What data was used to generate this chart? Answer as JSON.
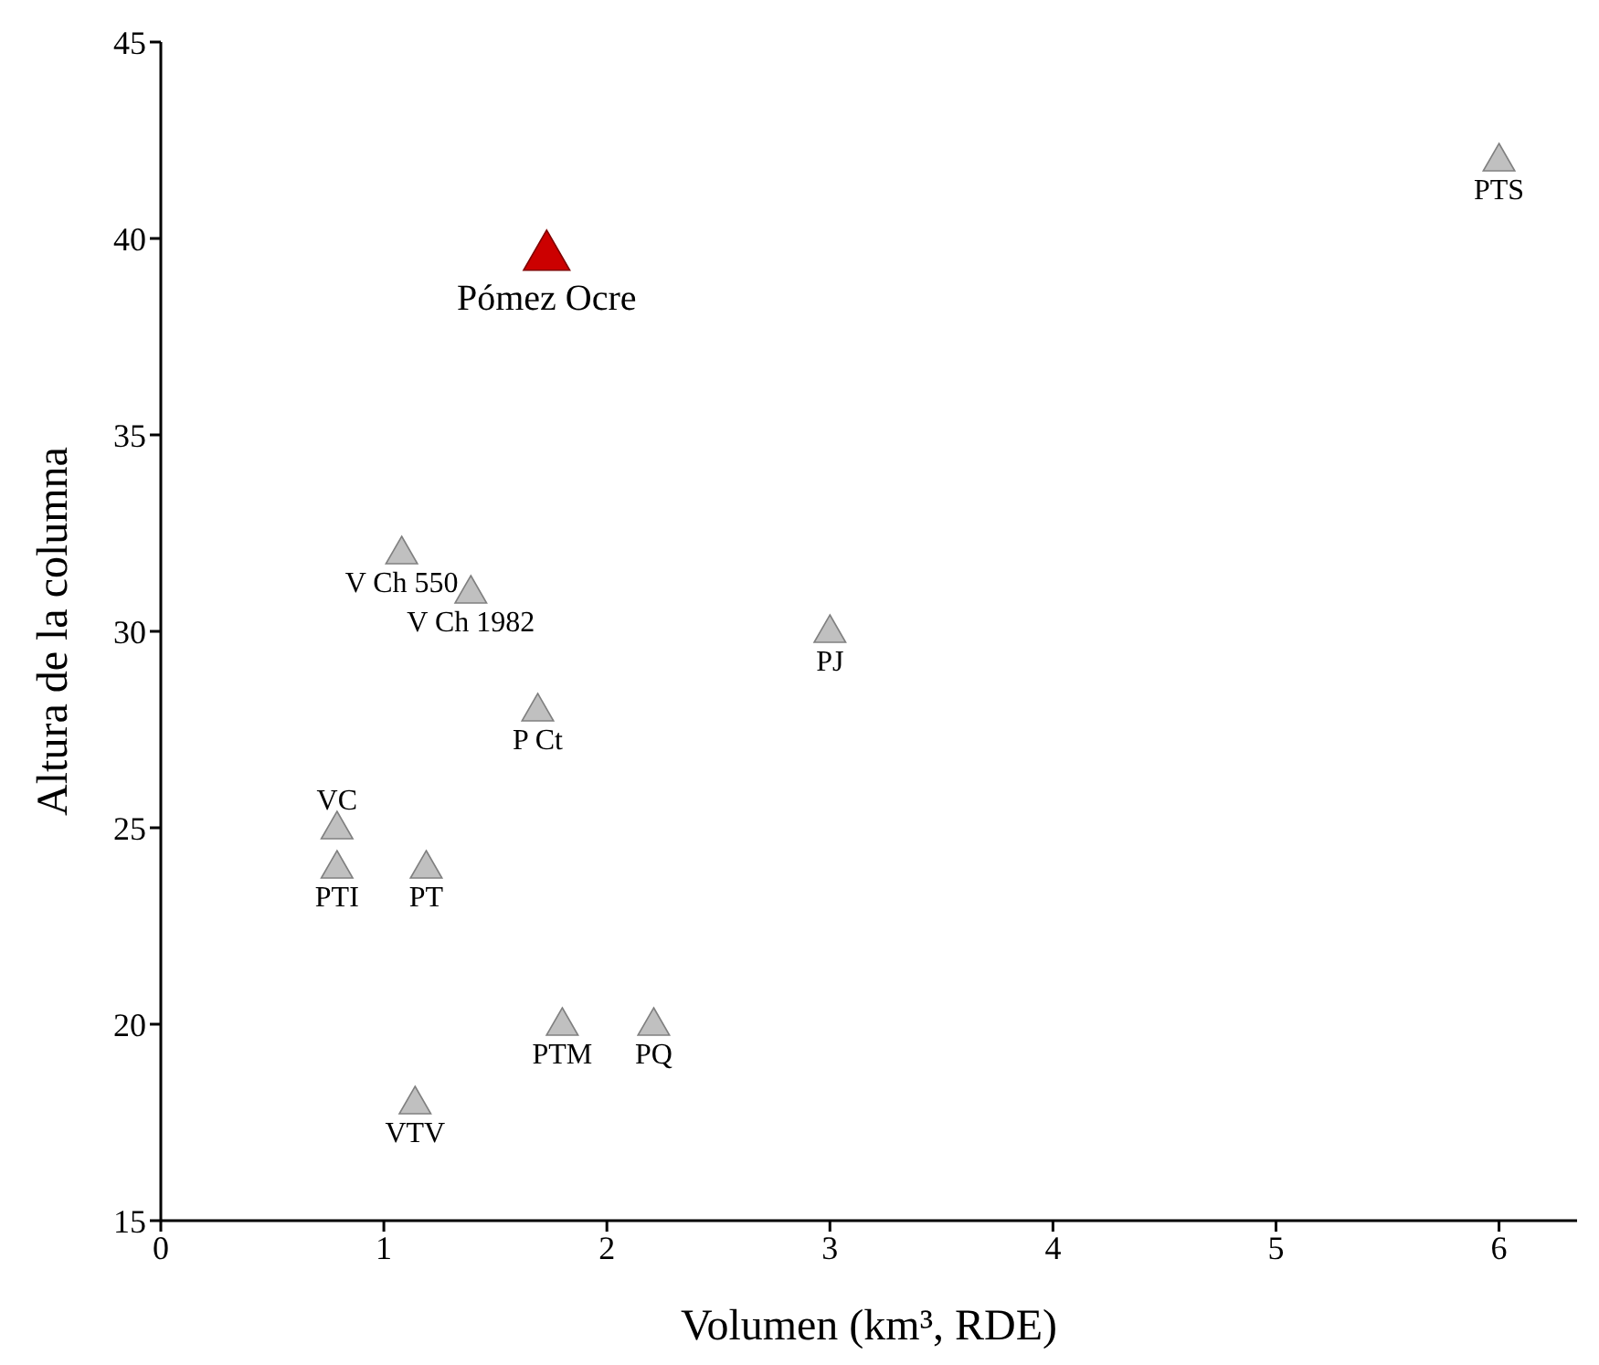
{
  "chart_data": {
    "type": "scatter",
    "xlabel": "Volumen (km³, RDE)",
    "ylabel": "Altura de la columna",
    "marker": "triangle",
    "grid": false,
    "legend": false,
    "xlim": [
      0,
      6.35
    ],
    "xticks": [
      0,
      1,
      2,
      3,
      4,
      5,
      6
    ],
    "ylim": [
      15,
      45
    ],
    "yticks": [
      15,
      20,
      25,
      30,
      35,
      40,
      45
    ],
    "series": [
      {
        "color": "#c0c0c0",
        "x": [
          6.0,
          1.08,
          1.39,
          3.0,
          1.69,
          0.79,
          0.79,
          1.19,
          1.8,
          2.21,
          1.14
        ],
        "values": [
          42,
          32,
          31,
          30,
          28,
          25,
          24,
          24,
          20,
          20,
          18
        ]
      },
      {
        "color": "#cc0000",
        "x": [
          1.73
        ],
        "values": [
          39.6
        ]
      }
    ],
    "annotations": [
      {
        "text": "PTS",
        "x": 6.0,
        "y": 42
      },
      {
        "text": "V Ch 550",
        "x": 1.08,
        "y": 32
      },
      {
        "text": "V Ch 1982",
        "x": 1.39,
        "y": 31
      },
      {
        "text": "PJ",
        "x": 3.0,
        "y": 30
      },
      {
        "text": "P Ct",
        "x": 1.69,
        "y": 28
      },
      {
        "text": "VC",
        "x": 0.79,
        "y": 25
      },
      {
        "text": "PTI",
        "x": 0.79,
        "y": 24
      },
      {
        "text": "PT",
        "x": 1.19,
        "y": 24
      },
      {
        "text": "PTM",
        "x": 1.8,
        "y": 20
      },
      {
        "text": "PQ",
        "x": 2.21,
        "y": 20
      },
      {
        "text": "VTV",
        "x": 1.14,
        "y": 18
      },
      {
        "text": "Pómez Ocre",
        "x": 1.73,
        "y": 39.6
      }
    ]
  }
}
